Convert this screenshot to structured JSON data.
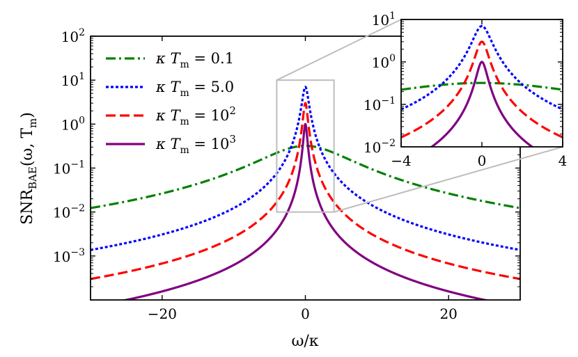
{
  "chart_data": [
    {
      "type": "line",
      "role": "main",
      "xlabel": "ω/κ",
      "ylabel_base": "SNR",
      "ylabel_sub": "BAE",
      "ylabel_args": "(ω, T",
      "ylabel_args_sub": "m",
      "ylabel_close": ")",
      "xscale": "linear",
      "yscale": "log",
      "xlim": [
        -30,
        30
      ],
      "ylim": [
        0.0001,
        100
      ],
      "xticks": [
        {
          "value": -20,
          "label": "−20"
        },
        {
          "value": 0,
          "label": "0"
        },
        {
          "value": 20,
          "label": "20"
        }
      ],
      "yticks": [
        {
          "value": 100,
          "base": "10",
          "exp": "2"
        },
        {
          "value": 10,
          "base": "10",
          "exp": "1"
        },
        {
          "value": 1,
          "base": "10",
          "exp": "0"
        },
        {
          "value": 0.1,
          "base": "10",
          "exp": "−1"
        },
        {
          "value": 0.01,
          "base": "10",
          "exp": "−2"
        },
        {
          "value": 0.001,
          "base": "10",
          "exp": "−3"
        }
      ],
      "legend_position": "top-left",
      "series": [
        {
          "name": "κT_m = 0.1",
          "lhs": "κ T",
          "lhs_sub": "m",
          "eq": " = ",
          "rhs": "0.1",
          "rhs_exp": "",
          "color": "#008000",
          "dash": "14 5 3 5",
          "peak": 0.32,
          "gamma": 6.0
        },
        {
          "name": "κT_m = 5.0",
          "lhs": "κ T",
          "lhs_sub": "m",
          "eq": " = ",
          "rhs": "5.0",
          "rhs_exp": "",
          "color": "#0000ff",
          "dash": "4 3",
          "peak": 7.0,
          "gamma": 0.42
        },
        {
          "name": "κT_m = 10^2",
          "lhs": "κ T",
          "lhs_sub": "m",
          "eq": " = ",
          "rhs": "10",
          "rhs_exp": "2",
          "color": "#ff0000",
          "dash": "14 6",
          "peak": 3.0,
          "gamma": 0.3
        },
        {
          "name": "κT_m = 10^3",
          "lhs": "κ T",
          "lhs_sub": "m",
          "eq": " = ",
          "rhs": "10",
          "rhs_exp": "3",
          "color": "#800080",
          "dash": "",
          "peak": 1.0,
          "gamma": 0.25
        }
      ],
      "zoom_region": {
        "x": [
          -4,
          4
        ],
        "y": [
          0.01,
          10
        ]
      }
    },
    {
      "type": "line",
      "role": "inset",
      "xlim": [
        -4,
        4
      ],
      "ylim": [
        0.01,
        10
      ],
      "xticks": [
        {
          "value": -4,
          "label": "−4"
        },
        {
          "value": 0,
          "label": "0"
        },
        {
          "value": 4,
          "label": "4"
        }
      ],
      "yticks": [
        {
          "value": 10,
          "base": "10",
          "exp": "1"
        },
        {
          "value": 1,
          "base": "10",
          "exp": "0"
        },
        {
          "value": 0.1,
          "base": "10",
          "exp": "−1"
        },
        {
          "value": 0.01,
          "base": "10",
          "exp": "−2"
        }
      ]
    }
  ]
}
